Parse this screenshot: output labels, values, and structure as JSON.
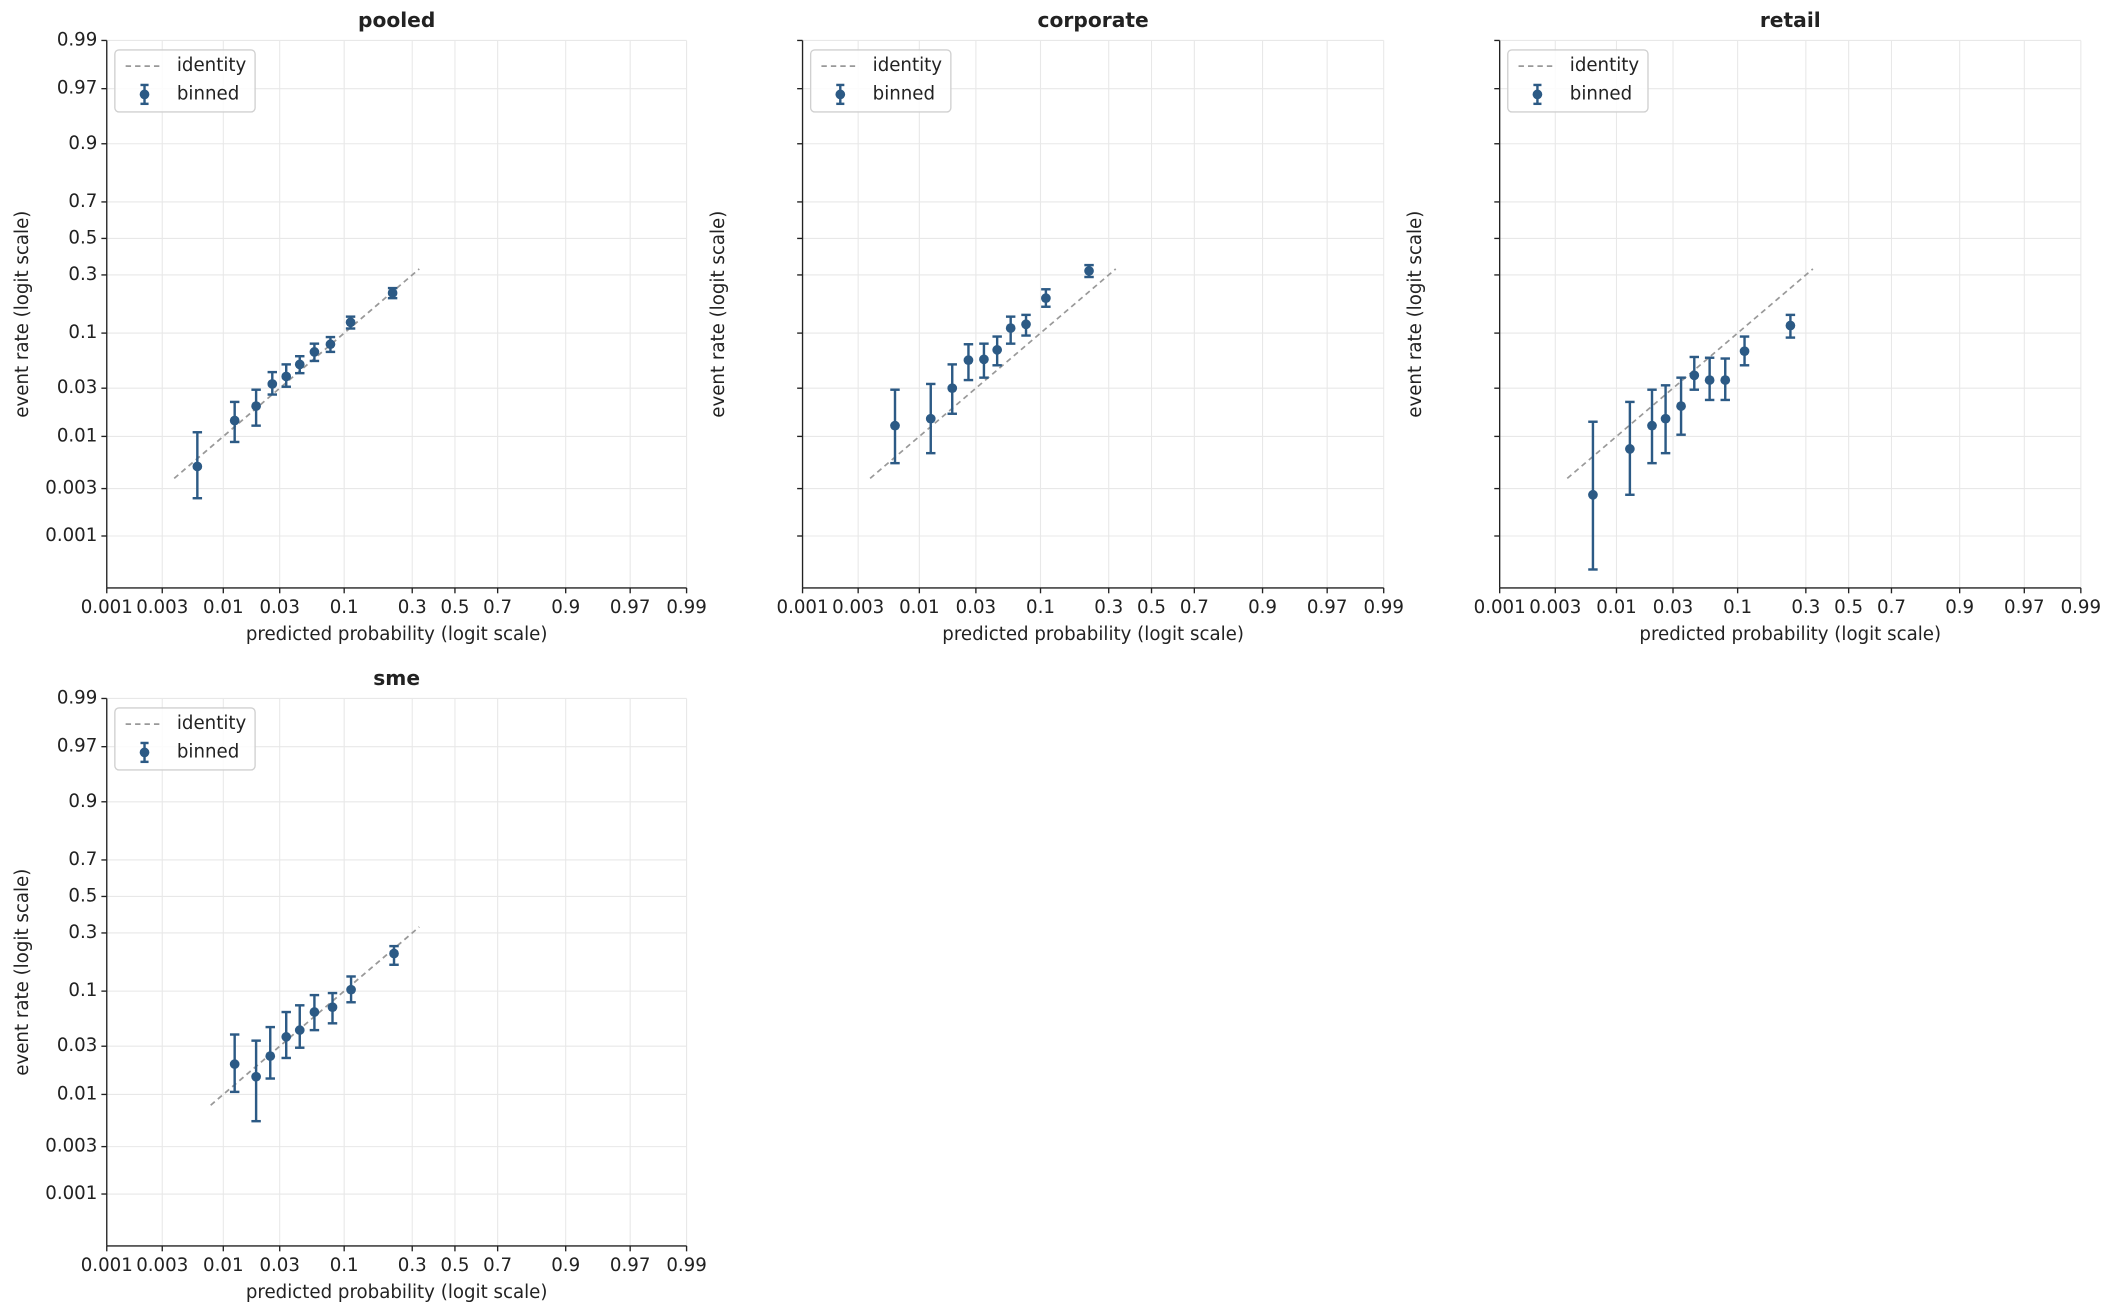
{
  "chart_data": [
    {
      "type": "scatter",
      "title": "pooled",
      "xlabel": "predicted probability (logit scale)",
      "ylabel": "event rate (logit scale)",
      "xscale": "logit",
      "yscale": "logit",
      "xlim": [
        0.001,
        0.99
      ],
      "ylim": [
        0.0003,
        0.99
      ],
      "xticks": [
        0.001,
        0.003,
        0.01,
        0.03,
        0.1,
        0.3,
        0.5,
        0.7,
        0.9,
        0.97,
        0.99
      ],
      "yticks": [
        0.001,
        0.003,
        0.01,
        0.03,
        0.1,
        0.3,
        0.5,
        0.7,
        0.9,
        0.97,
        0.99
      ],
      "show_ytick_labels": true,
      "grid": true,
      "legend": "upper left",
      "series": [
        {
          "name": "identity",
          "style": "dashed",
          "color": "#999999",
          "x": [
            0.0038,
            0.33
          ],
          "values": [
            0.0038,
            0.33
          ]
        },
        {
          "name": "binned",
          "style": "errorbar",
          "color": "#2c5a85",
          "x": [
            0.006,
            0.0125,
            0.019,
            0.026,
            0.034,
            0.044,
            0.058,
            0.078,
            0.112,
            0.225
          ],
          "values": [
            0.005,
            0.0144,
            0.02,
            0.033,
            0.039,
            0.051,
            0.067,
            0.079,
            0.125,
            0.22
          ],
          "lower": [
            0.0024,
            0.0088,
            0.0128,
            0.026,
            0.031,
            0.042,
            0.055,
            0.067,
            0.11,
            0.2
          ],
          "upper": [
            0.011,
            0.022,
            0.029,
            0.043,
            0.051,
            0.061,
            0.08,
            0.092,
            0.14,
            0.24
          ]
        }
      ]
    },
    {
      "type": "scatter",
      "title": "corporate",
      "xlabel": "predicted probability (logit scale)",
      "ylabel": "event rate (logit scale)",
      "xscale": "logit",
      "yscale": "logit",
      "xlim": [
        0.001,
        0.99
      ],
      "ylim": [
        0.0003,
        0.99
      ],
      "xticks": [
        0.001,
        0.003,
        0.01,
        0.03,
        0.1,
        0.3,
        0.5,
        0.7,
        0.9,
        0.97,
        0.99
      ],
      "yticks": [
        0.001,
        0.003,
        0.01,
        0.03,
        0.1,
        0.3,
        0.5,
        0.7,
        0.9,
        0.97,
        0.99
      ],
      "show_ytick_labels": false,
      "grid": true,
      "legend": "upper left",
      "series": [
        {
          "name": "identity",
          "style": "dashed",
          "color": "#999999",
          "x": [
            0.0038,
            0.33
          ],
          "values": [
            0.0038,
            0.33
          ]
        },
        {
          "name": "binned",
          "style": "errorbar",
          "color": "#2c5a85",
          "x": [
            0.0062,
            0.0125,
            0.019,
            0.026,
            0.035,
            0.045,
            0.058,
            0.077,
            0.11,
            0.225
          ],
          "values": [
            0.0128,
            0.015,
            0.03,
            0.056,
            0.057,
            0.07,
            0.111,
            0.12,
            0.2,
            0.32
          ],
          "lower": [
            0.0054,
            0.0068,
            0.0168,
            0.036,
            0.038,
            0.05,
            0.08,
            0.095,
            0.17,
            0.29
          ],
          "upper": [
            0.029,
            0.033,
            0.051,
            0.079,
            0.08,
            0.093,
            0.14,
            0.145,
            0.235,
            0.35
          ]
        }
      ]
    },
    {
      "type": "scatter",
      "title": "retail",
      "xlabel": "predicted probability (logit scale)",
      "ylabel": "event rate (logit scale)",
      "xscale": "logit",
      "yscale": "logit",
      "xlim": [
        0.001,
        0.99
      ],
      "ylim": [
        0.0003,
        0.99
      ],
      "xticks": [
        0.001,
        0.003,
        0.01,
        0.03,
        0.1,
        0.3,
        0.5,
        0.7,
        0.9,
        0.97,
        0.99
      ],
      "yticks": [
        0.001,
        0.003,
        0.01,
        0.03,
        0.1,
        0.3,
        0.5,
        0.7,
        0.9,
        0.97,
        0.99
      ],
      "show_ytick_labels": false,
      "grid": true,
      "legend": "upper left",
      "series": [
        {
          "name": "identity",
          "style": "dashed",
          "color": "#999999",
          "x": [
            0.0038,
            0.33
          ],
          "values": [
            0.0038,
            0.33
          ]
        },
        {
          "name": "binned",
          "style": "errorbar",
          "color": "#2c5a85",
          "x": [
            0.0063,
            0.013,
            0.02,
            0.026,
            0.035,
            0.045,
            0.06,
            0.08,
            0.113,
            0.24
          ],
          "values": [
            0.0026,
            0.0075,
            0.0128,
            0.015,
            0.02,
            0.04,
            0.036,
            0.036,
            0.068,
            0.117
          ],
          "lower": [
            0.00046,
            0.0026,
            0.0054,
            0.0068,
            0.0104,
            0.029,
            0.023,
            0.023,
            0.05,
            0.091
          ],
          "upper": [
            0.014,
            0.022,
            0.029,
            0.032,
            0.038,
            0.06,
            0.059,
            0.058,
            0.093,
            0.145
          ]
        }
      ]
    },
    {
      "type": "scatter",
      "title": "sme",
      "xlabel": "predicted probability (logit scale)",
      "ylabel": "event rate (logit scale)",
      "xscale": "logit",
      "yscale": "logit",
      "xlim": [
        0.001,
        0.99
      ],
      "ylim": [
        0.0003,
        0.99
      ],
      "xticks": [
        0.001,
        0.003,
        0.01,
        0.03,
        0.1,
        0.3,
        0.5,
        0.7,
        0.9,
        0.97,
        0.99
      ],
      "yticks": [
        0.001,
        0.003,
        0.01,
        0.03,
        0.1,
        0.3,
        0.5,
        0.7,
        0.9,
        0.97,
        0.99
      ],
      "show_ytick_labels": true,
      "grid": true,
      "legend": "upper left",
      "series": [
        {
          "name": "identity",
          "style": "dashed",
          "color": "#999999",
          "x": [
            0.0078,
            0.33
          ],
          "values": [
            0.0078,
            0.33
          ]
        },
        {
          "name": "binned",
          "style": "errorbar",
          "color": "#2c5a85",
          "x": [
            0.0125,
            0.019,
            0.025,
            0.034,
            0.044,
            0.058,
            0.081,
            0.113,
            0.23
          ],
          "values": [
            0.02,
            0.015,
            0.024,
            0.037,
            0.043,
            0.064,
            0.071,
            0.103,
            0.21
          ],
          "lower": [
            0.0106,
            0.0054,
            0.0144,
            0.023,
            0.029,
            0.043,
            0.05,
            0.079,
            0.17
          ],
          "upper": [
            0.039,
            0.034,
            0.046,
            0.064,
            0.074,
            0.092,
            0.096,
            0.135,
            0.24
          ]
        }
      ]
    }
  ]
}
